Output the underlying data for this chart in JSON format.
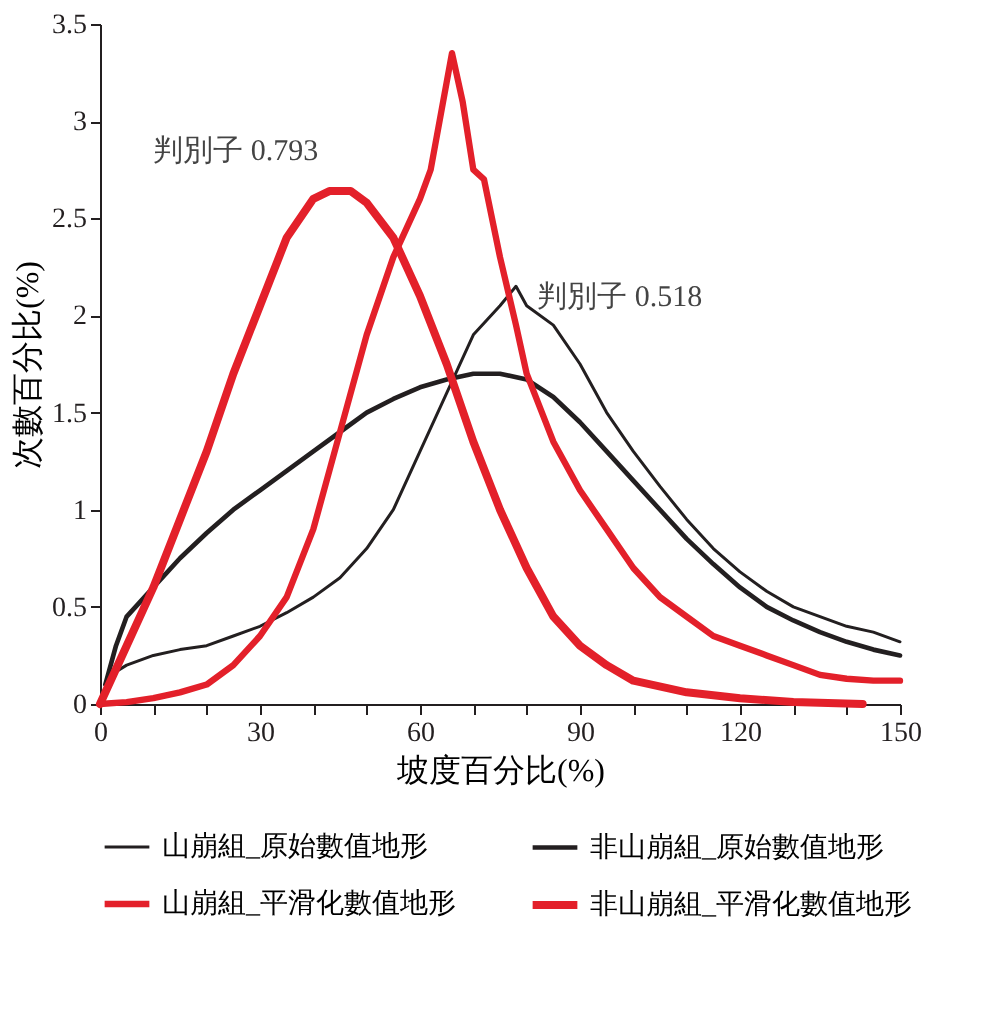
{
  "chart_data": {
    "type": "line",
    "xlabel": "坡度百分比(%)",
    "ylabel": "次數百分比(%)",
    "xlim": [
      0,
      150
    ],
    "xticks": [
      0,
      {
        "value": 10,
        "label": null
      },
      {
        "value": 20,
        "label": null
      },
      30,
      {
        "value": 40,
        "label": null
      },
      {
        "value": 50,
        "label": null
      },
      60,
      {
        "value": 70,
        "label": null
      },
      {
        "value": 80,
        "label": null
      },
      90,
      {
        "value": 100,
        "label": null
      },
      {
        "value": 110,
        "label": null
      },
      120,
      {
        "value": 130,
        "label": null
      },
      {
        "value": 140,
        "label": null
      },
      150
    ],
    "ylim": [
      0,
      3.5
    ],
    "yticks": [
      0,
      0.5,
      1,
      1.5,
      2,
      2.5,
      3,
      3.5
    ],
    "grid": false,
    "legend": "bottom",
    "annotations": [
      "判別子 0.793",
      "判別子 0.518"
    ],
    "series": [
      {
        "name": "山崩組_原始數值地形",
        "color": "#231f20",
        "x": [
          2,
          5,
          10,
          15,
          20,
          25,
          30,
          35,
          40,
          45,
          50,
          55,
          60,
          65,
          70,
          75,
          78,
          80,
          85,
          90,
          95,
          100,
          105,
          110,
          115,
          120,
          125,
          130,
          135,
          140,
          145,
          150
        ],
        "values": [
          0.15,
          0.2,
          0.25,
          0.28,
          0.3,
          0.35,
          0.4,
          0.47,
          0.55,
          0.65,
          0.8,
          1.0,
          1.3,
          1.6,
          1.9,
          2.05,
          2.15,
          2.05,
          1.95,
          1.75,
          1.5,
          1.3,
          1.12,
          0.95,
          0.8,
          0.68,
          0.58,
          0.5,
          0.45,
          0.4,
          0.37,
          0.32
        ]
      },
      {
        "name": "非山崩組_原始數值地形",
        "color": "#231f20",
        "x": [
          1,
          3,
          5,
          10,
          15,
          20,
          25,
          30,
          35,
          40,
          45,
          50,
          55,
          60,
          65,
          70,
          75,
          80,
          85,
          90,
          95,
          100,
          105,
          110,
          115,
          120,
          125,
          130,
          135,
          140,
          145,
          150
        ],
        "values": [
          0.1,
          0.3,
          0.45,
          0.6,
          0.75,
          0.88,
          1.0,
          1.1,
          1.2,
          1.3,
          1.4,
          1.5,
          1.57,
          1.63,
          1.67,
          1.7,
          1.7,
          1.67,
          1.58,
          1.45,
          1.3,
          1.15,
          1.0,
          0.85,
          0.72,
          0.6,
          0.5,
          0.43,
          0.37,
          0.32,
          0.28,
          0.25
        ]
      },
      {
        "name": "山崩組_平滑化數值地形",
        "color": "#e3202a",
        "x": [
          0,
          5,
          10,
          15,
          20,
          25,
          30,
          35,
          40,
          45,
          50,
          55,
          60,
          62,
          65,
          66,
          68,
          70,
          72,
          75,
          78,
          80,
          85,
          90,
          95,
          100,
          105,
          110,
          115,
          120,
          125,
          130,
          135,
          140,
          145,
          150
        ],
        "values": [
          0,
          0.01,
          0.03,
          0.06,
          0.1,
          0.2,
          0.35,
          0.55,
          0.9,
          1.4,
          1.9,
          2.3,
          2.6,
          2.75,
          3.2,
          3.35,
          3.1,
          2.75,
          2.7,
          2.3,
          1.95,
          1.7,
          1.35,
          1.1,
          0.9,
          0.7,
          0.55,
          0.45,
          0.35,
          0.3,
          0.25,
          0.2,
          0.15,
          0.13,
          0.12,
          0.12
        ]
      },
      {
        "name": "非山崩組_平滑化數值地形",
        "color": "#e3202a",
        "x": [
          0,
          5,
          10,
          15,
          20,
          25,
          30,
          35,
          40,
          43,
          47,
          50,
          55,
          60,
          65,
          70,
          75,
          80,
          85,
          90,
          95,
          100,
          110,
          120,
          130,
          143
        ],
        "values": [
          0,
          0.3,
          0.6,
          0.95,
          1.3,
          1.7,
          2.05,
          2.4,
          2.6,
          2.64,
          2.64,
          2.58,
          2.4,
          2.1,
          1.75,
          1.35,
          1.0,
          0.7,
          0.45,
          0.3,
          0.2,
          0.12,
          0.06,
          0.03,
          0.01,
          0
        ]
      }
    ]
  }
}
